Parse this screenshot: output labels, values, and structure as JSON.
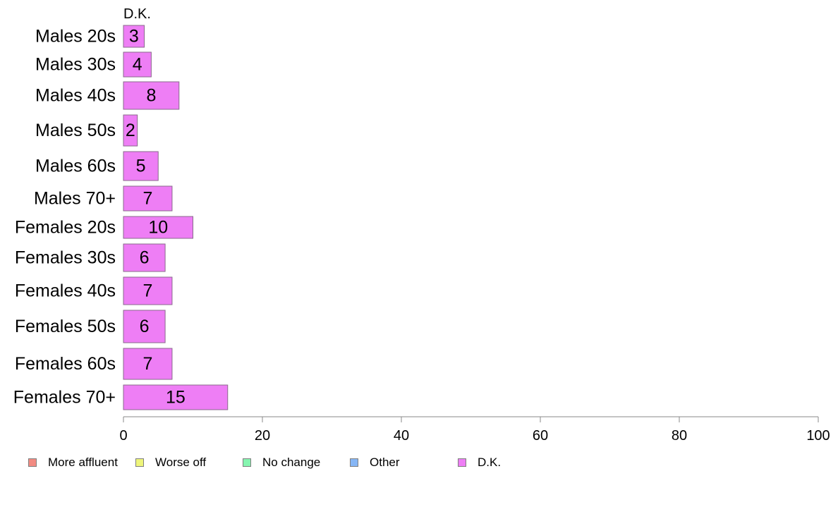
{
  "chart_data": {
    "type": "bar",
    "orientation": "horizontal",
    "stacked": true,
    "categories": [
      "Males 20s",
      "Males 30s",
      "Males 40s",
      "Males 50s",
      "Males 60s",
      "Males 70+",
      "Females 20s",
      "Females 30s",
      "Females 40s",
      "Females 50s",
      "Females 60s",
      "Females 70+"
    ],
    "series": [
      {
        "name": "More affluent",
        "color": "#f28b82",
        "values": [
          0,
          0,
          0,
          0,
          0,
          0,
          0,
          0,
          0,
          0,
          0,
          0
        ]
      },
      {
        "name": "Worse off",
        "color": "#eef57a",
        "values": [
          0,
          0,
          0,
          0,
          0,
          0,
          0,
          0,
          0,
          0,
          0,
          0
        ]
      },
      {
        "name": "No change",
        "color": "#86f5b0",
        "values": [
          0,
          0,
          0,
          0,
          0,
          0,
          0,
          0,
          0,
          0,
          0,
          0
        ]
      },
      {
        "name": "Other",
        "color": "#86b6f5",
        "values": [
          0,
          0,
          0,
          0,
          0,
          0,
          0,
          0,
          0,
          0,
          0,
          0
        ]
      },
      {
        "name": "D.K.",
        "color": "#ee7ef5",
        "values": [
          3,
          4,
          8,
          2,
          5,
          7,
          10,
          6,
          7,
          6,
          7,
          15
        ]
      }
    ],
    "data_labels": [
      "3",
      "4",
      "8",
      "2",
      "5",
      "7",
      "10",
      "6",
      "7",
      "6",
      "7",
      "15"
    ],
    "series_top_label": "D.K.",
    "xlim": [
      0,
      100
    ],
    "xticks": [
      0,
      20,
      40,
      60,
      80,
      100
    ],
    "xtick_labels": [
      "0",
      "20",
      "40",
      "60",
      "80",
      "100"
    ],
    "grid": false,
    "legend_position": "bottom-left",
    "title": "",
    "xlabel": "",
    "ylabel": ""
  }
}
